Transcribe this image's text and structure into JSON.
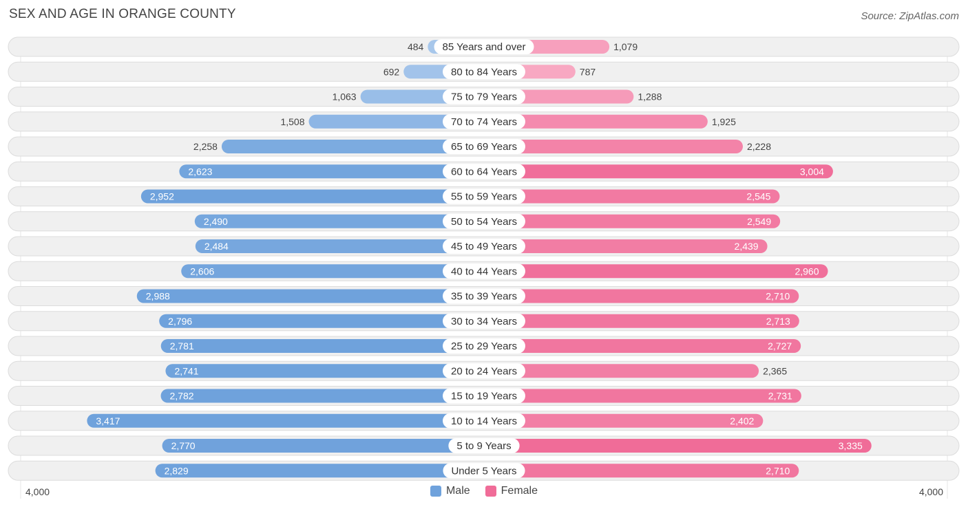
{
  "title": "SEX AND AGE IN ORANGE COUNTY",
  "source": "Source: ZipAtlas.com",
  "legend": {
    "male": "Male",
    "female": "Female"
  },
  "axis": {
    "left_label": "4,000",
    "right_label": "4,000"
  },
  "colors": {
    "male_light": "#a9c8ec",
    "male_dark": "#6fa2dc",
    "female_light": "#f8aac4",
    "female_dark": "#f06c98",
    "row_bg": "#f0f0f0",
    "row_border": "#dcdcdc"
  },
  "chart_data": {
    "type": "bar",
    "orientation": "horizontal-diverging",
    "max": 4000,
    "categories": [
      "85 Years and over",
      "80 to 84 Years",
      "75 to 79 Years",
      "70 to 74 Years",
      "65 to 69 Years",
      "60 to 64 Years",
      "55 to 59 Years",
      "50 to 54 Years",
      "45 to 49 Years",
      "40 to 44 Years",
      "35 to 39 Years",
      "30 to 34 Years",
      "25 to 29 Years",
      "20 to 24 Years",
      "15 to 19 Years",
      "10 to 14 Years",
      "5 to 9 Years",
      "Under 5 Years"
    ],
    "series": [
      {
        "name": "Male",
        "values": [
          484,
          692,
          1063,
          1508,
          2258,
          2623,
          2952,
          2490,
          2484,
          2606,
          2988,
          2796,
          2781,
          2741,
          2782,
          3417,
          2770,
          2829
        ],
        "labels": [
          "484",
          "692",
          "1,063",
          "1,508",
          "2,258",
          "2,623",
          "2,952",
          "2,490",
          "2,484",
          "2,606",
          "2,988",
          "2,796",
          "2,781",
          "2,741",
          "2,782",
          "3,417",
          "2,770",
          "2,829"
        ]
      },
      {
        "name": "Female",
        "values": [
          1079,
          787,
          1288,
          1925,
          2228,
          3004,
          2545,
          2549,
          2439,
          2960,
          2710,
          2713,
          2727,
          2365,
          2731,
          2402,
          3335,
          2710
        ],
        "labels": [
          "1,079",
          "787",
          "1,288",
          "1,925",
          "2,228",
          "3,004",
          "2,545",
          "2,549",
          "2,439",
          "2,960",
          "2,710",
          "2,713",
          "2,727",
          "2,365",
          "2,731",
          "2,402",
          "3,335",
          "2,710"
        ]
      }
    ]
  }
}
